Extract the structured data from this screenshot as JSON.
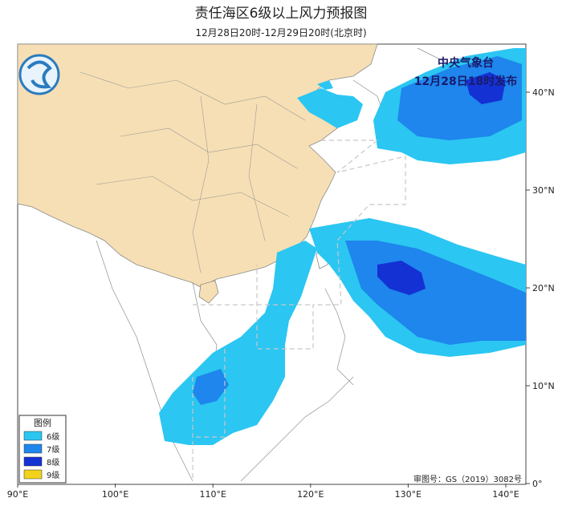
{
  "header": {
    "title": "责任海区6级以上风力预报图",
    "subtitle": "12月28日20时-12月29日20时(北京时)"
  },
  "issuer": {
    "agency": "中央气象台",
    "issue_time": "12月28日18时发布"
  },
  "axes": {
    "longitude_labels": [
      "90°E",
      "100°E",
      "110°E",
      "120°E",
      "130°E",
      "140°E"
    ],
    "latitude_labels": [
      "40°N",
      "30°N",
      "20°N",
      "10°N",
      "0°"
    ]
  },
  "legend": {
    "title": "图例",
    "items": [
      {
        "label": "6级",
        "color": "#2bc6f2"
      },
      {
        "label": "7级",
        "color": "#1e86ec"
      },
      {
        "label": "8级",
        "color": "#1431d4"
      },
      {
        "label": "9级",
        "color": "#f2d21b"
      }
    ]
  },
  "footer": {
    "approval": "审图号：GS（2019）3082号"
  }
}
